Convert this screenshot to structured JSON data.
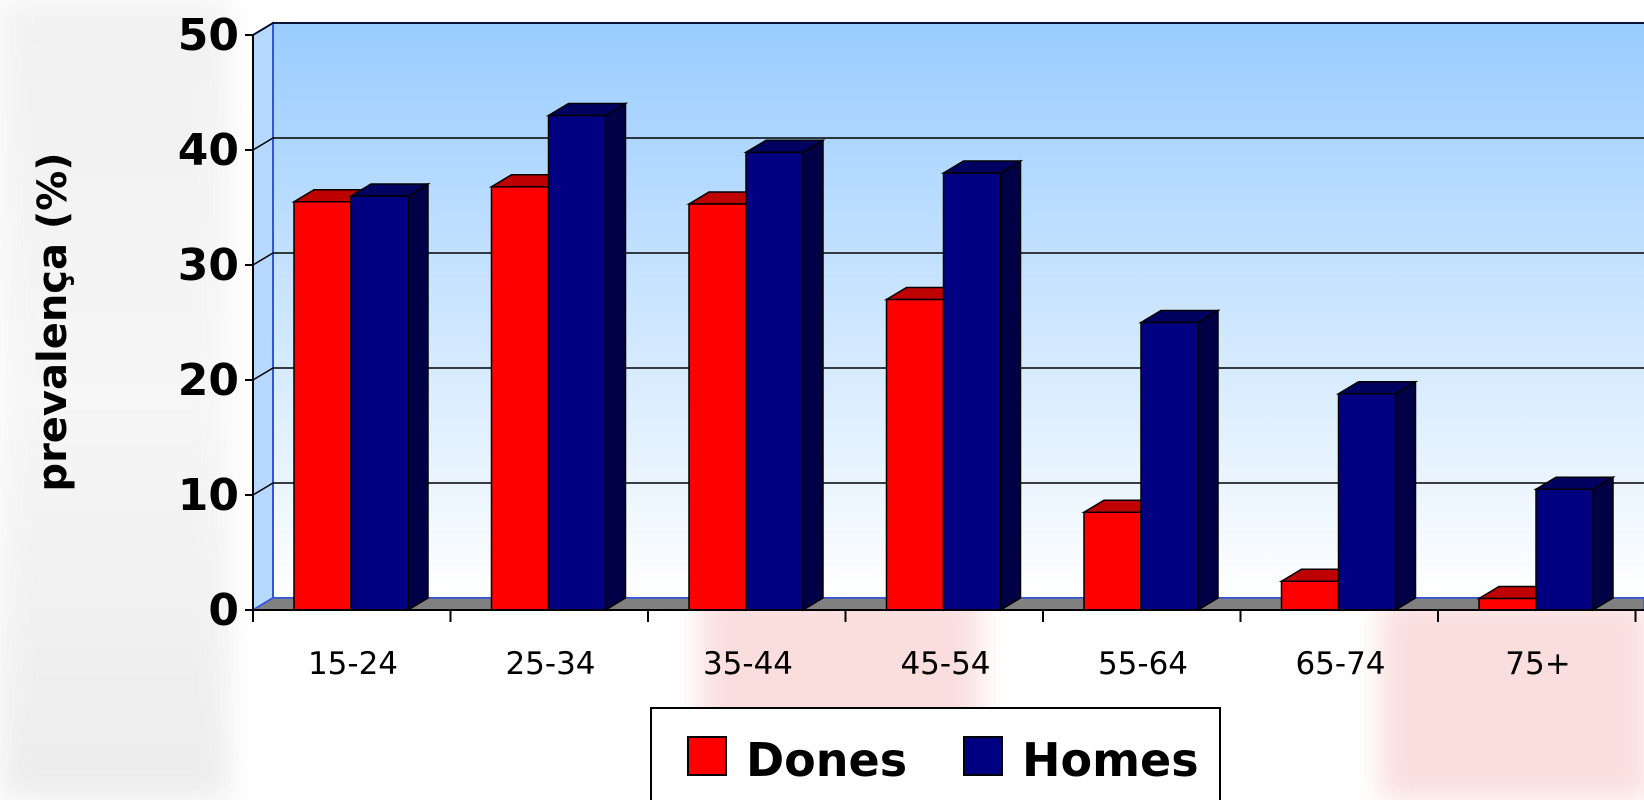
{
  "chart_data": {
    "type": "bar",
    "title": "",
    "xlabel": "",
    "ylabel": "prevalença (%)",
    "ylim": [
      0,
      50
    ],
    "yticks": [
      "0",
      "10",
      "20",
      "30",
      "40",
      "50"
    ],
    "categories": [
      "15-24",
      "25-34",
      "35-44",
      "45-54",
      "55-64",
      "65-74",
      "75+"
    ],
    "series": [
      {
        "name": "Dones",
        "color": "#ff0000",
        "values": [
          35.5,
          36.8,
          35.3,
          27,
          8.5,
          2.5,
          1
        ]
      },
      {
        "name": "Homes",
        "color": "#000080",
        "values": [
          36,
          43,
          39.8,
          38,
          25,
          18.8,
          10.5
        ]
      }
    ],
    "grid": true,
    "legend_position": "bottom",
    "style": "3d-clustered",
    "plot_background": "gradient light-blue to white"
  }
}
